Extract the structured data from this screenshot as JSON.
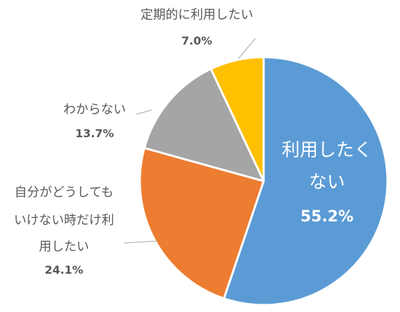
{
  "chart_data": {
    "type": "pie",
    "title": "",
    "start_angle_deg": 0,
    "direction": "clockwise",
    "slices": [
      {
        "label_lines": [
          "利用したく",
          "ない"
        ],
        "value": 55.2,
        "value_label": "55.2%",
        "color": "#5b9bd5",
        "label_position": "inside"
      },
      {
        "label_lines": [
          "自分がどうしても",
          "いけない時だけ利",
          "用したい"
        ],
        "value": 24.1,
        "value_label": "24.1%",
        "color": "#ed7d31",
        "label_position": "outside-left"
      },
      {
        "label_lines": [
          "わからない"
        ],
        "value": 13.7,
        "value_label": "13.7%",
        "color": "#a5a5a5",
        "label_position": "outside-left"
      },
      {
        "label_lines": [
          "定期的に利用したい"
        ],
        "value": 7.0,
        "value_label": "7.0%",
        "color": "#ffc000",
        "label_position": "outside-top"
      }
    ]
  }
}
